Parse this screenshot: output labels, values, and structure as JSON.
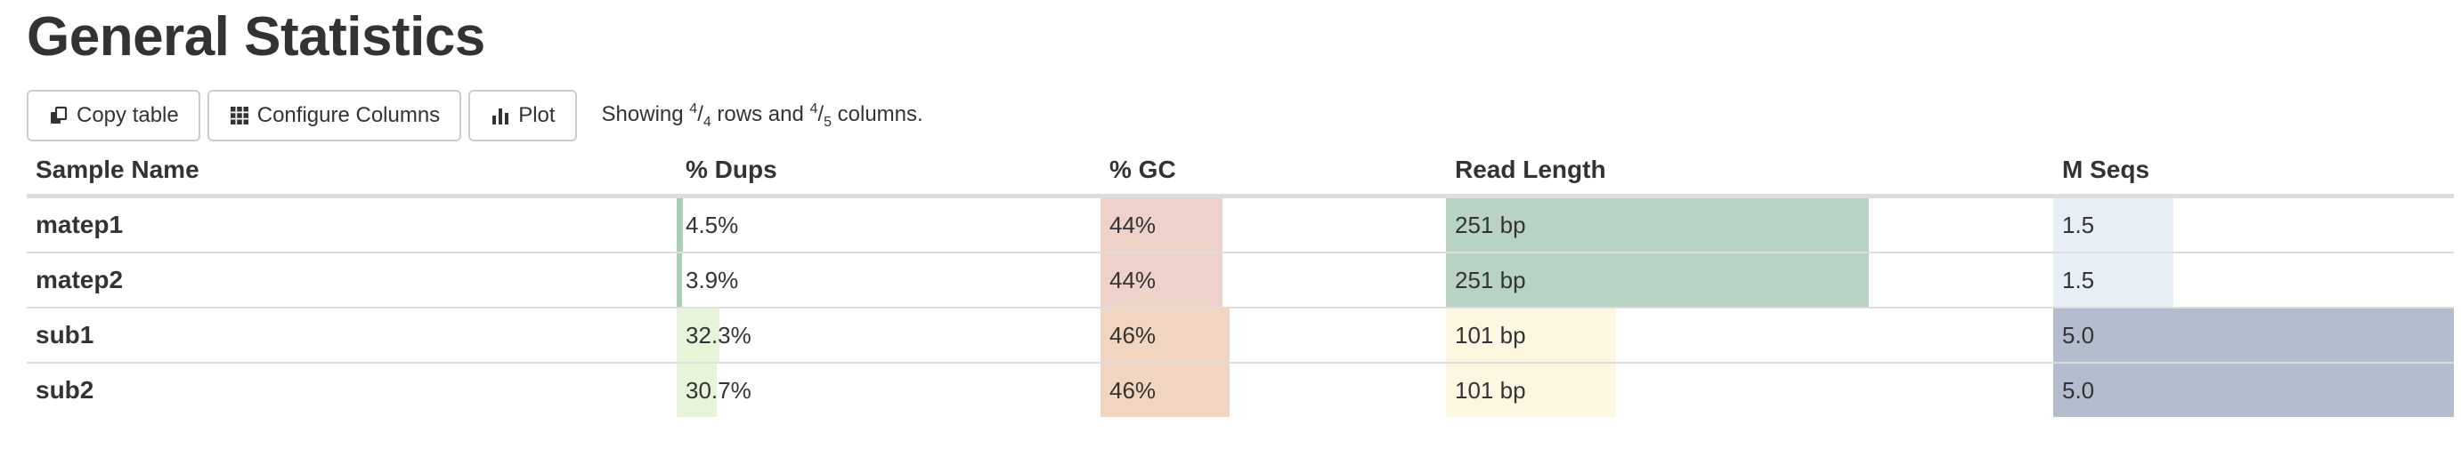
{
  "page": {
    "title": "General Statistics"
  },
  "toolbar": {
    "copy_label": "Copy table",
    "configure_label": "Configure Columns",
    "plot_label": "Plot",
    "showing_prefix": "Showing ",
    "rows_shown": "4",
    "rows_total": "4",
    "rows_word": " rows and ",
    "cols_shown": "4",
    "cols_total": "5",
    "cols_word": " columns."
  },
  "table": {
    "headers": [
      "Sample Name",
      "% Dups",
      "% GC",
      "Read Length",
      "M Seqs"
    ],
    "rows": [
      {
        "name": "matep1",
        "dups": "4.5%",
        "gc": "44%",
        "readlen": "251 bp",
        "mseqs": "1.5"
      },
      {
        "name": "matep2",
        "dups": "3.9%",
        "gc": "44%",
        "readlen": "251 bp",
        "mseqs": "1.5"
      },
      {
        "name": "sub1",
        "dups": "32.3%",
        "gc": "46%",
        "readlen": "101 bp",
        "mseqs": "5.0"
      },
      {
        "name": "sub2",
        "dups": "30.7%",
        "gc": "46%",
        "readlen": "101 bp",
        "mseqs": "5.0"
      }
    ],
    "bar_colors": {
      "dups_low": "#a9cfb8",
      "dups_high": "#e6f5d9",
      "gc_44": "#eed1c9",
      "gc_46": "#f1d5c0",
      "readlen_251": "#b8d3c4",
      "readlen_101": "#fdf6e0",
      "mseqs_low": "#e8eef6",
      "mseqs_high": "#b3bdcd"
    },
    "bar_fractions": [
      {
        "dups": 0.0139,
        "gc": 0.354,
        "readlen": 0.697,
        "mseqs": 0.3
      },
      {
        "dups": 0.0121,
        "gc": 0.354,
        "readlen": 0.697,
        "mseqs": 0.3
      },
      {
        "dups": 0.1,
        "gc": 0.373,
        "readlen": 0.28,
        "mseqs": 1.0
      },
      {
        "dups": 0.095,
        "gc": 0.373,
        "readlen": 0.28,
        "mseqs": 1.0
      }
    ]
  }
}
